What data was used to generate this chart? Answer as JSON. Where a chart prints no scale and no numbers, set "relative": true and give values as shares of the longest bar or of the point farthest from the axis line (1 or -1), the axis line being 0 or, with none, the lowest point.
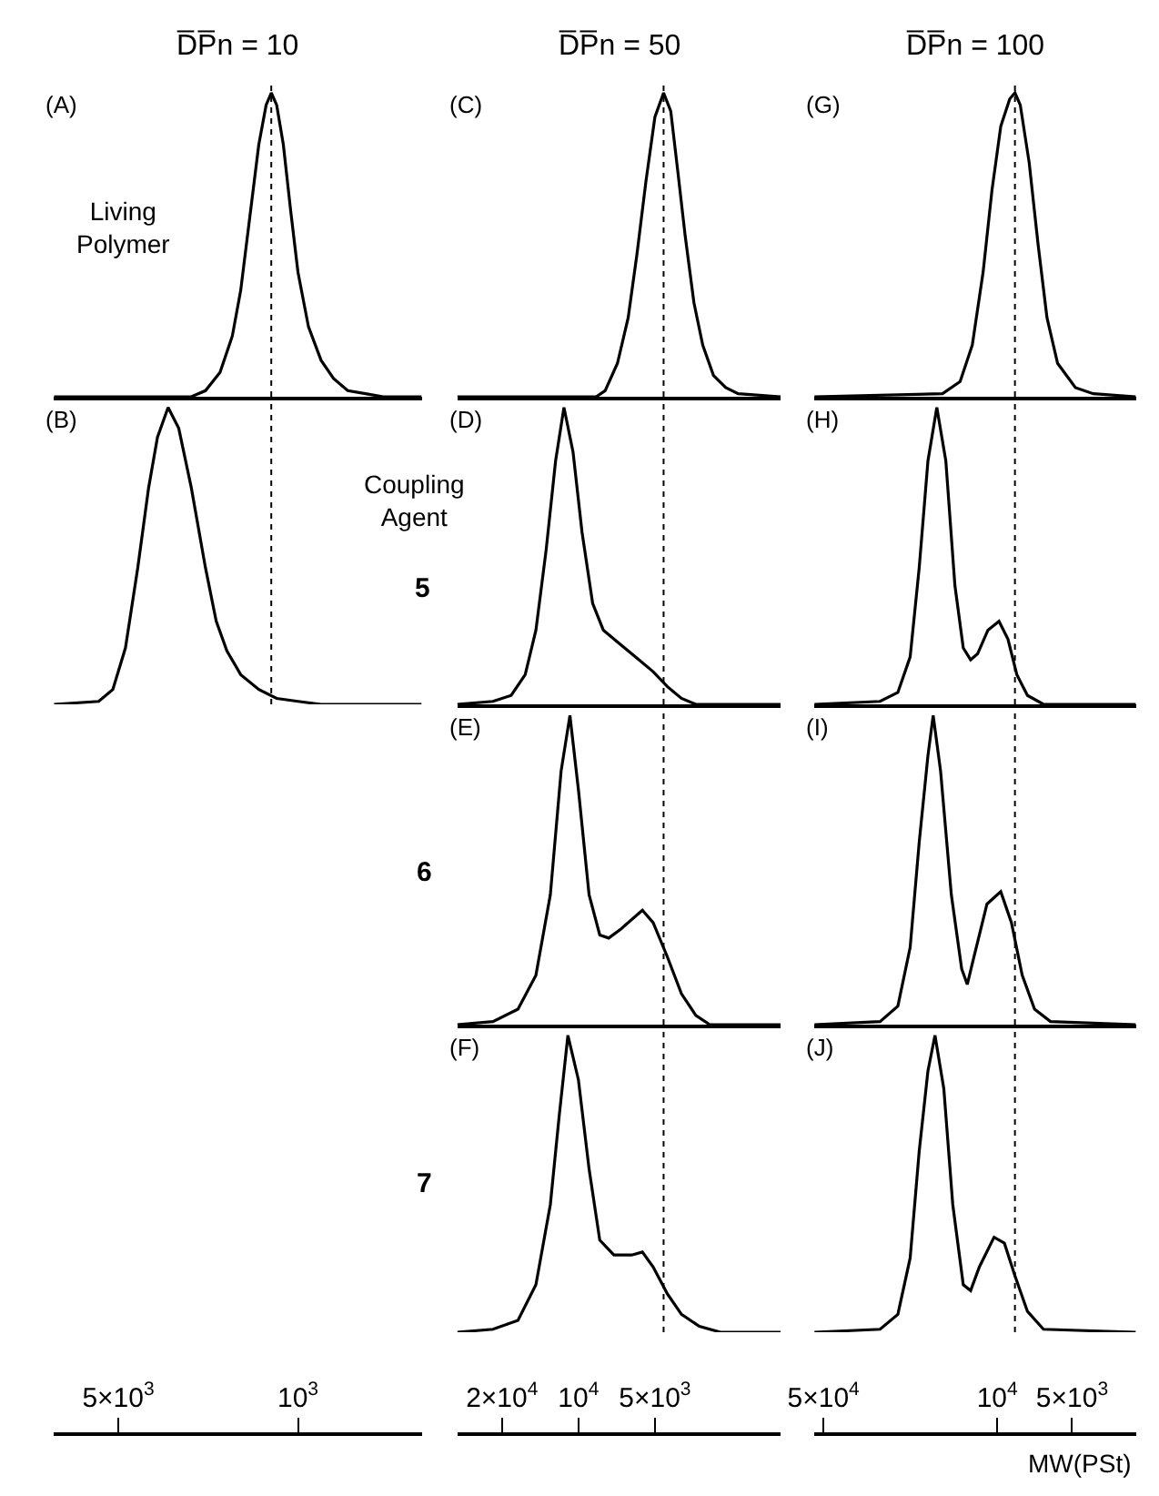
{
  "chart_data": [
    {
      "type": "line",
      "title": "D̅P̅n = 10",
      "relative": true,
      "log": "x",
      "xlim": [
        8900,
        330
      ],
      "tick_labels": false,
      "annotations": [
        "(A)",
        "Living\nPolymer"
      ],
      "x": [
        8900,
        2600,
        2290,
        2010,
        1800,
        1670,
        1540,
        1420,
        1330,
        1270,
        1210,
        1140,
        1070,
        1000,
        910,
        813,
        727,
        640,
        546,
        466,
        330
      ],
      "series": [
        {
          "color": "#000000",
          "values": [
            0,
            0,
            0.02,
            0.08,
            0.2,
            0.35,
            0.59,
            0.83,
            0.96,
            1,
            0.96,
            0.83,
            0.62,
            0.41,
            0.23,
            0.12,
            0.06,
            0.02,
            0.01,
            0,
            0
          ]
        }
      ],
      "ref_lines": [
        {
          "axis": "x",
          "value": 1270,
          "color": "#000000",
          "line_style": "dotted"
        }
      ]
    },
    {
      "type": "line",
      "title": "D̅P̅n = 50",
      "relative": true,
      "log": "x",
      "xlim": [
        30000,
        1600
      ],
      "tick_labels": false,
      "annotations": [
        "(C)"
      ],
      "x": [
        30000,
        8510,
        7850,
        7020,
        6370,
        5880,
        5420,
        5000,
        4620,
        4330,
        4060,
        3800,
        3510,
        3240,
        2940,
        2630,
        2350,
        1600
      ],
      "series": [
        {
          "color": "#000000",
          "values": [
            0,
            0,
            0.02,
            0.11,
            0.26,
            0.47,
            0.71,
            0.92,
            1,
            0.94,
            0.74,
            0.53,
            0.31,
            0.17,
            0.07,
            0.03,
            0.01,
            0
          ]
        }
      ],
      "ref_lines": [
        {
          "axis": "x",
          "value": 4620,
          "color": "#000000",
          "line_style": "dotted"
        }
      ]
    },
    {
      "type": "line",
      "title": "D̅P̅n = 100",
      "relative": true,
      "log": "x",
      "xlim": [
        54400,
        2770
      ],
      "tick_labels": false,
      "annotations": [
        "(G)"
      ],
      "x": [
        54400,
        16600,
        14100,
        12600,
        11400,
        10500,
        9680,
        8910,
        8490,
        8080,
        7440,
        6850,
        6310,
        5720,
        4850,
        4110,
        2770
      ],
      "series": [
        {
          "color": "#000000",
          "values": [
            0,
            0.01,
            0.05,
            0.17,
            0.41,
            0.68,
            0.89,
            0.98,
            1,
            0.96,
            0.77,
            0.5,
            0.26,
            0.11,
            0.03,
            0.01,
            0
          ]
        }
      ],
      "ref_lines": [
        {
          "axis": "x",
          "value": 8490,
          "color": "#000000",
          "line_style": "dotted"
        }
      ]
    },
    {
      "type": "line",
      "relative": true,
      "log": "x",
      "xlim": [
        8900,
        330
      ],
      "tick_labels": "x",
      "annotations": [
        "(B)"
      ],
      "xticks": [
        {
          "value": 5000,
          "label": "5×10$^{3}$"
        },
        {
          "value": 1000,
          "label": "10$^{3}$"
        }
      ],
      "x": [
        8900,
        5960,
        5250,
        4690,
        4200,
        3810,
        3520,
        3200,
        2910,
        2600,
        2290,
        2080,
        1890,
        1670,
        1420,
        1210,
        1000,
        813,
        330
      ],
      "series": [
        {
          "color": "#000000",
          "values": [
            0,
            0.01,
            0.05,
            0.19,
            0.46,
            0.73,
            0.9,
            1,
            0.93,
            0.73,
            0.46,
            0.28,
            0.18,
            0.1,
            0.05,
            0.02,
            0.01,
            0,
            0
          ]
        }
      ],
      "ref_lines": [
        {
          "axis": "x",
          "value": 1270,
          "color": "#000000",
          "line_style": "dotted"
        }
      ]
    },
    {
      "type": "line",
      "relative": true,
      "log": "x",
      "xlim": [
        30000,
        1600
      ],
      "tick_labels": false,
      "annotations": [
        "(D)",
        "Coupling\nAgent",
        "5"
      ],
      "x": [
        30000,
        21700,
        18400,
        16200,
        14700,
        13400,
        12300,
        11400,
        10500,
        9680,
        8790,
        7980,
        7020,
        5970,
        5080,
        4470,
        3930,
        3450,
        1600
      ],
      "series": [
        {
          "color": "#000000",
          "values": [
            0,
            0.01,
            0.03,
            0.1,
            0.25,
            0.52,
            0.82,
            1,
            0.85,
            0.58,
            0.34,
            0.25,
            0.21,
            0.16,
            0.11,
            0.06,
            0.02,
            0,
            0
          ]
        }
      ],
      "ref_lines": [
        {
          "axis": "x",
          "value": 4620,
          "color": "#000000",
          "line_style": "dotted"
        }
      ]
    },
    {
      "type": "line",
      "relative": true,
      "log": "x",
      "xlim": [
        54400,
        2770
      ],
      "tick_labels": false,
      "annotations": [
        "(H)"
      ],
      "x": [
        54400,
        29600,
        25100,
        22400,
        20600,
        19000,
        17500,
        16100,
        14800,
        13700,
        12800,
        12000,
        10900,
        9840,
        9060,
        8340,
        7560,
        6520,
        2770
      ],
      "series": [
        {
          "color": "#000000",
          "values": [
            0,
            0.01,
            0.04,
            0.16,
            0.46,
            0.82,
            1,
            0.82,
            0.4,
            0.19,
            0.15,
            0.17,
            0.25,
            0.28,
            0.22,
            0.1,
            0.03,
            0,
            0
          ]
        }
      ],
      "ref_lines": [
        {
          "axis": "x",
          "value": 8490,
          "color": "#000000",
          "line_style": "dotted"
        }
      ]
    },
    {
      "type": "line",
      "relative": true,
      "log": "x",
      "xlim": [
        30000,
        1600
      ],
      "tick_labels": false,
      "annotations": [
        "(E)",
        "6"
      ],
      "x": [
        30000,
        21700,
        17300,
        14700,
        12900,
        11700,
        10800,
        10000,
        9080,
        8240,
        7600,
        6790,
        5600,
        5080,
        4470,
        3930,
        3450,
        3040,
        1600
      ],
      "series": [
        {
          "color": "#000000",
          "values": [
            0,
            0.01,
            0.05,
            0.16,
            0.42,
            0.82,
            1,
            0.76,
            0.42,
            0.29,
            0.28,
            0.31,
            0.37,
            0.33,
            0.22,
            0.1,
            0.03,
            0,
            0
          ]
        }
      ],
      "ref_lines": [
        {
          "axis": "x",
          "value": 4620,
          "color": "#000000",
          "line_style": "dotted"
        }
      ]
    },
    {
      "type": "line",
      "relative": true,
      "log": "x",
      "xlim": [
        54400,
        2770
      ],
      "tick_labels": false,
      "annotations": [
        "(I)"
      ],
      "x": [
        54400,
        29600,
        25100,
        22400,
        20600,
        19000,
        18100,
        16900,
        15300,
        13900,
        13200,
        12400,
        11000,
        9680,
        8770,
        7940,
        7080,
        6110,
        2770
      ],
      "series": [
        {
          "color": "#000000",
          "values": [
            0,
            0.01,
            0.06,
            0.25,
            0.59,
            0.87,
            1,
            0.82,
            0.42,
            0.18,
            0.13,
            0.22,
            0.39,
            0.43,
            0.33,
            0.16,
            0.05,
            0.01,
            0
          ]
        }
      ],
      "ref_lines": [
        {
          "axis": "x",
          "value": 8490,
          "color": "#000000",
          "line_style": "dotted"
        }
      ]
    },
    {
      "type": "line",
      "relative": true,
      "log": "x",
      "xlim": [
        30000,
        1600
      ],
      "tick_labels": "x",
      "annotations": [
        "(F)",
        "7"
      ],
      "xticks": [
        {
          "value": 20000,
          "label": "2×10$^{4}$"
        },
        {
          "value": 10000,
          "label": "10$^{4}$"
        },
        {
          "value": 5000,
          "label": "5×10$^{3}$"
        }
      ],
      "x": [
        30000,
        21700,
        17300,
        14700,
        12900,
        11900,
        11000,
        10000,
        9080,
        8240,
        7250,
        6170,
        5600,
        5080,
        4470,
        3930,
        3340,
        2760,
        1600
      ],
      "series": [
        {
          "color": "#000000",
          "values": [
            0,
            0.01,
            0.04,
            0.16,
            0.43,
            0.73,
            1,
            0.85,
            0.55,
            0.31,
            0.26,
            0.26,
            0.27,
            0.22,
            0.13,
            0.06,
            0.02,
            0,
            0
          ]
        }
      ],
      "ref_lines": [
        {
          "axis": "x",
          "value": 4620,
          "color": "#000000",
          "line_style": "dotted"
        }
      ]
    },
    {
      "type": "line",
      "relative": true,
      "log": "x",
      "xlim": [
        54400,
        2770
      ],
      "tick_labels": "x",
      "annotations": [
        "(J)"
      ],
      "xlabel": "MW(PSt)",
      "xticks": [
        {
          "value": 50000,
          "label": "5×10$^{4}$"
        },
        {
          "value": 10000,
          "label": "10$^{4}$"
        },
        {
          "value": 5000,
          "label": "5×10$^{3}$"
        }
      ],
      "x": [
        54400,
        29600,
        25100,
        22400,
        20600,
        19000,
        17800,
        16400,
        15100,
        13700,
        12800,
        11800,
        10300,
        9360,
        8490,
        7560,
        6520,
        2770
      ],
      "series": [
        {
          "color": "#000000",
          "values": [
            0,
            0.01,
            0.06,
            0.25,
            0.61,
            0.88,
            1,
            0.82,
            0.43,
            0.16,
            0.14,
            0.22,
            0.32,
            0.3,
            0.19,
            0.07,
            0.01,
            0
          ]
        }
      ],
      "ref_lines": [
        {
          "axis": "x",
          "value": 8490,
          "color": "#000000",
          "line_style": "dotted"
        }
      ]
    }
  ]
}
